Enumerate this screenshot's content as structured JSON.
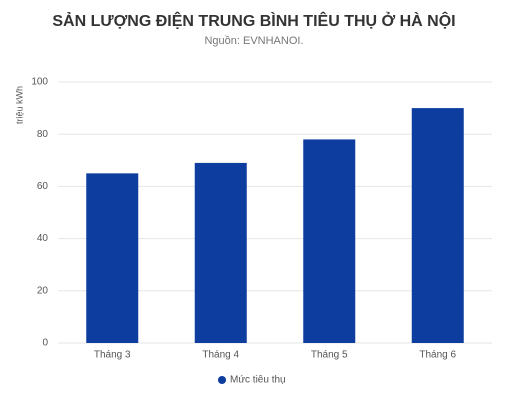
{
  "chart_data": {
    "type": "bar",
    "title": "SẢN LƯỢNG ĐIỆN TRUNG BÌNH TIÊU THỤ Ở HÀ NỘI",
    "subtitle": "Nguồn: EVNHANOI.",
    "y_label": "triệu kWh",
    "categories": [
      "Tháng 3",
      "Tháng 4",
      "Tháng 5",
      "Tháng 6"
    ],
    "series": [
      {
        "name": "Mức tiêu thụ",
        "color": "#0d3d9e",
        "values": [
          65,
          69,
          78,
          90
        ]
      }
    ],
    "ylim": [
      0,
      100
    ],
    "yticks": [
      0,
      20,
      40,
      60,
      80,
      100
    ],
    "grid": true,
    "legend": "bottom"
  }
}
